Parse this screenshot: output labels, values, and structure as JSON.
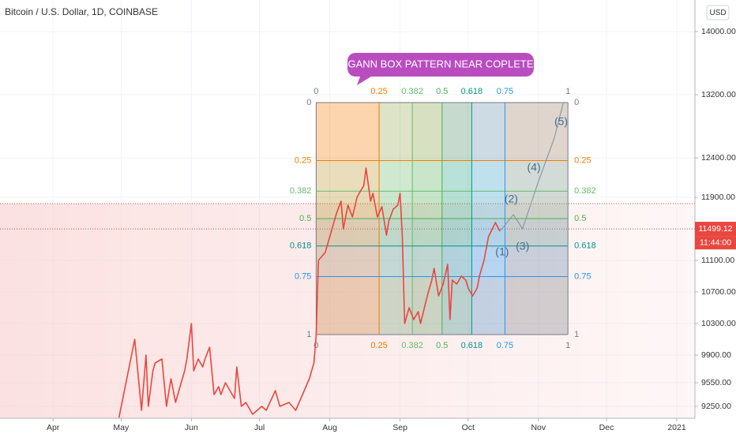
{
  "chart_data": {
    "type": "line",
    "title": "Bitcoin / U.S. Dollar, 1D, COINBASE",
    "currency": "USD",
    "xlim": [
      70,
      375
    ],
    "ylim": [
      9100,
      14400
    ],
    "xticks": [
      {
        "value": 92,
        "label": "Apr"
      },
      {
        "value": 122,
        "label": "May"
      },
      {
        "value": 153,
        "label": "Jun"
      },
      {
        "value": 183,
        "label": "Jul"
      },
      {
        "value": 214,
        "label": "Aug"
      },
      {
        "value": 245,
        "label": "Sep"
      },
      {
        "value": 275,
        "label": "Oct"
      },
      {
        "value": 306,
        "label": "Nov"
      },
      {
        "value": 336,
        "label": "Dec"
      },
      {
        "value": 367,
        "label": "2021"
      }
    ],
    "yticks": [
      {
        "value": 14000,
        "label": "14000.00"
      },
      {
        "value": 13200,
        "label": "13200.00"
      },
      {
        "value": 12400,
        "label": "12400.00"
      },
      {
        "value": 11900,
        "label": "11900.00"
      },
      {
        "value": 11100,
        "label": "11100.00"
      },
      {
        "value": 10700,
        "label": "10700.00"
      },
      {
        "value": 10300,
        "label": "10300.00"
      },
      {
        "value": 9900,
        "label": "9900.00"
      },
      {
        "value": 9550,
        "label": "9550.00"
      },
      {
        "value": 9250,
        "label": "9250.00"
      }
    ],
    "grid": true,
    "series": [
      {
        "color": "#e8473f",
        "x": [
          121,
          128,
          131,
          133,
          134,
          136,
          137,
          140,
          142,
          144,
          146,
          148,
          150,
          151,
          153,
          154,
          156,
          158,
          159,
          161,
          163,
          165,
          166,
          168,
          170,
          172,
          173,
          175,
          177,
          180,
          184,
          186,
          190,
          192,
          196,
          199,
          202,
          205,
          207,
          208,
          209,
          212,
          214,
          217,
          219,
          220,
          222,
          224,
          226,
          227,
          229,
          230,
          232,
          233,
          235,
          237,
          239,
          240,
          242,
          244,
          245,
          246,
          247,
          249,
          251,
          253,
          254,
          257,
          259,
          260,
          262,
          264,
          266,
          267,
          268,
          270,
          272,
          274,
          275,
          277,
          279,
          280,
          282,
          284,
          287,
          289
        ],
        "values": [
          9100,
          10100,
          9200,
          9900,
          9250,
          9700,
          9800,
          9850,
          9250,
          9600,
          9300,
          9500,
          9700,
          9850,
          10300,
          9700,
          9850,
          9750,
          9850,
          10000,
          9400,
          9500,
          9400,
          9550,
          9450,
          9350,
          9750,
          9250,
          9300,
          9150,
          9250,
          9200,
          9450,
          9250,
          9300,
          9200,
          9400,
          9600,
          9800,
          10150,
          11100,
          11200,
          11400,
          11700,
          11850,
          11500,
          11800,
          11650,
          11900,
          11950,
          12050,
          12270,
          11850,
          11950,
          11650,
          11780,
          11420,
          11600,
          11750,
          11800,
          11950,
          11400,
          10300,
          10500,
          10350,
          10450,
          10300,
          10650,
          10850,
          11000,
          10650,
          10800,
          11050,
          10350,
          10850,
          10800,
          10900,
          10850,
          10750,
          10650,
          10750,
          10900,
          11100,
          11400,
          11580,
          11470
        ]
      },
      {
        "color": "#8a9aa8",
        "x": [
          289,
          295,
          299,
          306,
          313,
          317
        ],
        "values": [
          11470,
          11680,
          11500,
          12100,
          12650,
          13100
        ]
      }
    ],
    "last_price": 11499.12,
    "last_time": "11:44:00",
    "reference_line": 11820,
    "annotation": "GANN BOX PATTERN NEAR COPLETE",
    "gann_box": {
      "start": 208,
      "end": 319,
      "top": 13100,
      "bottom": 10160,
      "levels": [
        {
          "value": 0,
          "color": "#787b86"
        },
        {
          "value": 0.25,
          "color": "#f57c00"
        },
        {
          "value": 0.382,
          "color": "#66bb6a"
        },
        {
          "value": 0.5,
          "color": "#4caf50"
        },
        {
          "value": 0.618,
          "color": "#009688"
        },
        {
          "value": 0.75,
          "color": "#2196f3"
        },
        {
          "value": 1,
          "color": "#787b86"
        }
      ]
    },
    "waves": [
      {
        "label": "(1)",
        "x": 290,
        "y": 11200
      },
      {
        "label": "(2)",
        "x": 294,
        "y": 11870
      },
      {
        "label": "(3)",
        "x": 299,
        "y": 11270
      },
      {
        "label": "(4)",
        "x": 304,
        "y": 12270
      },
      {
        "label": "(5)",
        "x": 316,
        "y": 12850
      }
    ]
  }
}
